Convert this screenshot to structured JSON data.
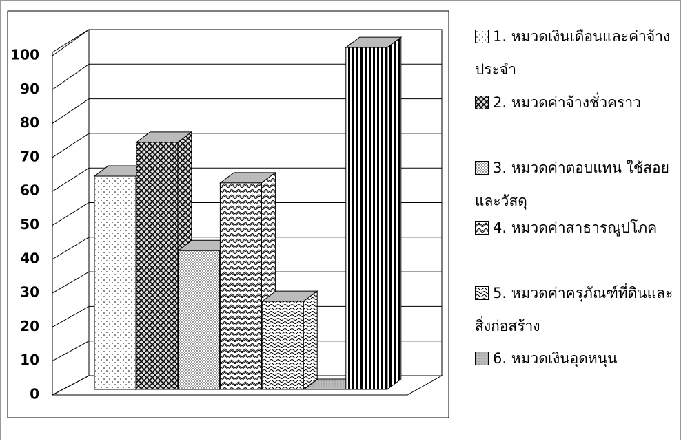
{
  "chart_data": {
    "type": "bar3d",
    "series": [
      {
        "name": "1. หมวดเงินเดือนและค่าจ้างประจำ",
        "pattern": "dots",
        "values": [
          63
        ]
      },
      {
        "name": "2. หมวดค่าจ้างชั่วคราว",
        "pattern": "crosshatch",
        "values": [
          73
        ]
      },
      {
        "name": "3. หมวดค่าตอบแทน ใช้สอยและวัสดุ",
        "pattern": "densedots",
        "values": [
          41
        ]
      },
      {
        "name": "4. หมวดค่าสาธารณูปโภค",
        "pattern": "zigzag",
        "values": [
          61
        ]
      },
      {
        "name": "5. หมวดค่าครุภัณฑ์ที่ดินและสิ่งก่อสร้าง",
        "pattern": "waves",
        "values": [
          26
        ]
      },
      {
        "name": "6. หมวดเงินอุดหนุน",
        "pattern": "grey",
        "values": [
          0
        ]
      },
      {
        "pattern": "stripes",
        "values": [
          101
        ]
      }
    ],
    "ylim": [
      0,
      100
    ],
    "yticks": [
      0,
      10,
      20,
      30,
      40,
      50,
      60,
      70,
      80,
      90,
      100
    ],
    "grid": true
  }
}
